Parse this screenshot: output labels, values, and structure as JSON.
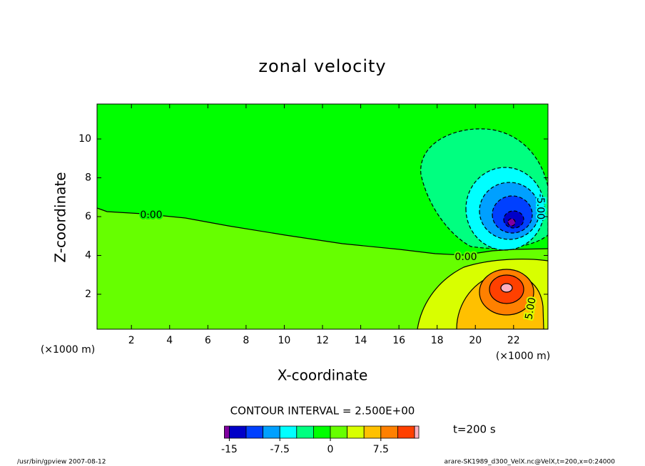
{
  "chart_data": {
    "type": "contour",
    "title": "zonal velocity",
    "xlabel": "X-coordinate",
    "ylabel": "Z-coordinate",
    "x_unit": "(×1000 m)",
    "xlim": [
      0.2,
      23.8
    ],
    "xticks": [
      2,
      4,
      6,
      8,
      10,
      12,
      14,
      16,
      18,
      20,
      22
    ],
    "ylim": [
      0.2,
      11.8
    ],
    "yticks": [
      2,
      4,
      6,
      8,
      10
    ],
    "levels": [
      -15,
      -12.5,
      -10,
      -7.5,
      -5,
      -2.5,
      0,
      2.5,
      5,
      7.5,
      10,
      12.5
    ],
    "colors": [
      "#8000a0",
      "#0000c8",
      "#0040ff",
      "#00a0ff",
      "#00ffff",
      "#00ff80",
      "#00ff00",
      "#66ff00",
      "#d8ff00",
      "#ffc000",
      "#ff8000",
      "#ff4000",
      "#ffb0c0"
    ],
    "colorbar_ticks": [
      -15,
      -7.5,
      0,
      7.5
    ],
    "contour_labels": [
      "0.00",
      "0.00",
      "5.00",
      "-5.00"
    ],
    "contour_interval": "CONTOUR INTERVAL = 2.500E+00",
    "time": "t=200 s",
    "footer_left": "/usr/bin/gpview   2007-08-12",
    "footer_right": "arare-SK1989_d300_VelX.nc@VelX,t=200,x=0:24000"
  }
}
